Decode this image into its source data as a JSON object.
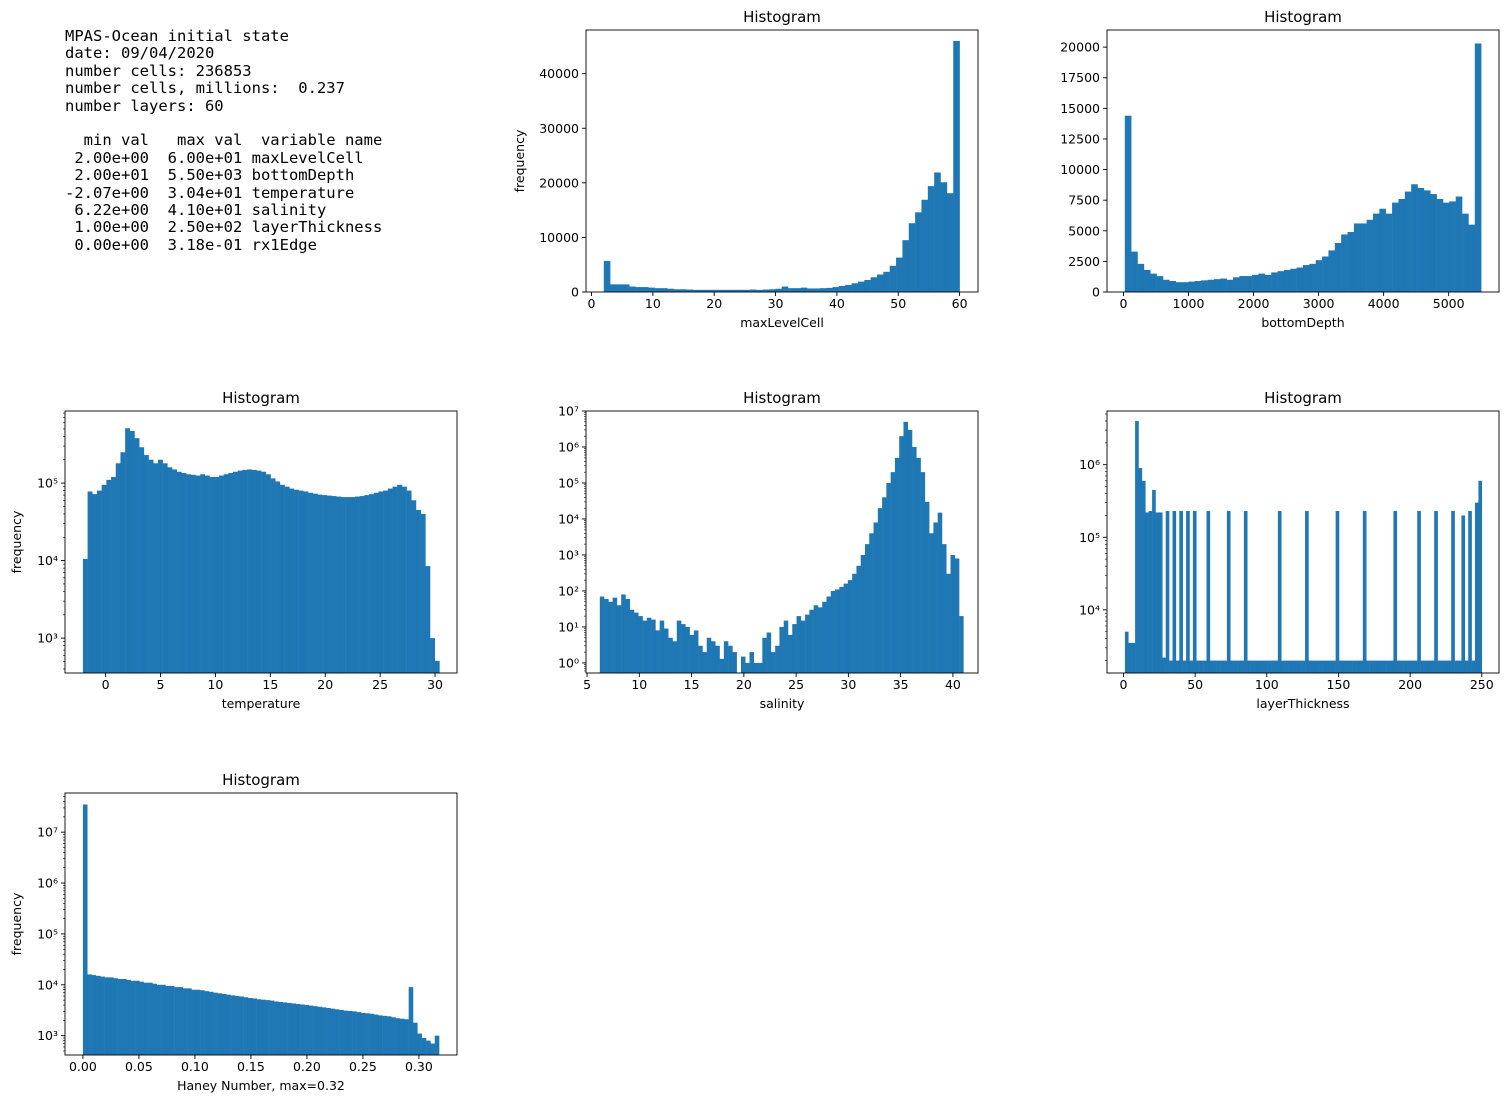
{
  "summary": {
    "header_lines": [
      "MPAS-Ocean initial state",
      "date: 09/04/2020",
      "number cells: 236853",
      "number cells, millions:  0.237",
      "number layers: 60"
    ],
    "table_header": "  min val   max val  variable name",
    "table_rows": [
      " 2.00e+00  6.00e+01 maxLevelCell",
      " 2.00e+01  5.50e+03 bottomDepth",
      "-2.07e+00  3.04e+01 temperature",
      " 6.22e+00  4.10e+01 salinity",
      " 1.00e+00  2.50e+02 layerThickness",
      " 0.00e+00  3.18e-01 rx1Edge"
    ]
  },
  "colors": {
    "bar": "#1f77b4",
    "axes": "#000000",
    "background": "#ffffff"
  },
  "chart_data": [
    {
      "id": "maxLevelCell",
      "type": "bar",
      "title": "Histogram",
      "xlabel": "maxLevelCell",
      "ylabel": "frequency",
      "yscale": "linear",
      "xlim": [
        -0.9,
        63.0
      ],
      "ylim": [
        0,
        48000
      ],
      "xticks": [
        0,
        10,
        20,
        30,
        40,
        50,
        60
      ],
      "xtick_labels": [
        "0",
        "10",
        "20",
        "30",
        "40",
        "50",
        "60"
      ],
      "yticks": [
        0,
        10000,
        20000,
        30000,
        40000
      ],
      "ytick_labels": [
        "0",
        "10000",
        "20000",
        "30000",
        "40000"
      ],
      "bin_start": 2,
      "bin_end": 60,
      "values": [
        5700,
        1400,
        1400,
        1400,
        1000,
        900,
        900,
        800,
        700,
        700,
        600,
        500,
        500,
        450,
        400,
        400,
        400,
        400,
        400,
        400,
        400,
        400,
        400,
        450,
        400,
        450,
        500,
        600,
        1000,
        700,
        700,
        800,
        650,
        650,
        700,
        750,
        900,
        1100,
        1300,
        1600,
        1900,
        2200,
        2700,
        3200,
        3700,
        4800,
        6300,
        9500,
        12600,
        14600,
        16900,
        19400,
        21900,
        20100,
        18100,
        46000
      ]
    },
    {
      "id": "bottomDepth",
      "type": "bar",
      "title": "Histogram",
      "xlabel": "bottomDepth",
      "ylabel": "",
      "yscale": "linear",
      "xlim": [
        -254,
        5774
      ],
      "ylim": [
        0,
        21400
      ],
      "xticks": [
        0,
        1000,
        2000,
        3000,
        4000,
        5000
      ],
      "xtick_labels": [
        "0",
        "1000",
        "2000",
        "3000",
        "4000",
        "5000"
      ],
      "yticks": [
        0,
        2500,
        5000,
        7500,
        10000,
        12500,
        15000,
        17500,
        20000
      ],
      "ytick_labels": [
        "0",
        "2500",
        "5000",
        "7500",
        "10000",
        "12500",
        "15000",
        "17500",
        "20000"
      ],
      "bin_start": 20,
      "bin_end": 5500,
      "values": [
        14400,
        3300,
        2300,
        1800,
        1500,
        1300,
        1000,
        900,
        800,
        800,
        850,
        900,
        950,
        1000,
        1050,
        1100,
        1000,
        1200,
        1300,
        1300,
        1400,
        1500,
        1400,
        1600,
        1700,
        1800,
        1900,
        2000,
        2200,
        2300,
        2600,
        2900,
        3400,
        4000,
        4700,
        4900,
        5600,
        5600,
        5900,
        6400,
        6800,
        6400,
        7300,
        7600,
        8200,
        8800,
        8500,
        8300,
        8000,
        7600,
        7300,
        7400,
        7800,
        6400,
        5500,
        20300
      ]
    },
    {
      "id": "temperature",
      "type": "bar",
      "title": "Histogram",
      "xlabel": "temperature",
      "ylabel": "frequency",
      "yscale": "log",
      "xlim": [
        -3.7,
        32.0
      ],
      "ylim_log10": [
        2.55,
        5.93
      ],
      "yticks": [
        1000,
        10000,
        100000
      ],
      "ytick_labels": [
        "10³",
        "10⁴",
        "10⁵"
      ],
      "xticks": [
        0,
        5,
        10,
        15,
        20,
        25,
        30
      ],
      "xtick_labels": [
        "0",
        "5",
        "10",
        "15",
        "20",
        "25",
        "30"
      ],
      "bin_start": -2.07,
      "bin_end": 30.4,
      "values": [
        10500,
        78000,
        72000,
        80000,
        95000,
        110000,
        120000,
        180000,
        250000,
        510000,
        470000,
        380000,
        290000,
        230000,
        200000,
        180000,
        200000,
        180000,
        160000,
        150000,
        140000,
        135000,
        130000,
        128000,
        125000,
        130000,
        125000,
        120000,
        120000,
        125000,
        130000,
        135000,
        140000,
        145000,
        148000,
        150000,
        148000,
        145000,
        140000,
        130000,
        115000,
        105000,
        95000,
        90000,
        85000,
        82000,
        80000,
        78000,
        75000,
        73000,
        71000,
        70000,
        69000,
        68000,
        67000,
        66000,
        66000,
        66000,
        67000,
        68000,
        70000,
        72000,
        75000,
        78000,
        80000,
        85000,
        90000,
        95000,
        90000,
        80000,
        60000,
        45000,
        40000,
        8500,
        1000,
        510
      ]
    },
    {
      "id": "salinity",
      "type": "bar",
      "title": "Histogram",
      "xlabel": "salinity",
      "ylabel": "",
      "yscale": "log",
      "xlim": [
        4.9,
        42.4
      ],
      "ylim_log10": [
        -0.28,
        7.0
      ],
      "yticks": [
        1,
        10,
        100,
        1000,
        10000,
        100000,
        1000000,
        10000000
      ],
      "ytick_labels": [
        "10⁰",
        "10¹",
        "10²",
        "10³",
        "10⁴",
        "10⁵",
        "10⁶",
        "10⁷"
      ],
      "xticks": [
        5,
        10,
        15,
        20,
        25,
        30,
        35,
        40
      ],
      "xtick_labels": [
        "5",
        "10",
        "15",
        "20",
        "25",
        "30",
        "35",
        "40"
      ],
      "bin_start": 6.22,
      "bin_end": 41.0,
      "values": [
        70,
        60,
        50,
        65,
        40,
        80,
        60,
        30,
        25,
        20,
        15,
        18,
        16,
        8,
        15,
        9,
        5,
        4,
        15,
        12,
        10,
        6,
        8,
        3,
        2,
        5,
        4,
        3,
        1.3,
        4,
        3,
        2,
        0,
        1.5,
        1,
        2,
        1,
        1,
        5,
        7,
        2,
        3,
        10,
        15,
        6,
        12,
        20,
        15,
        22,
        30,
        40,
        35,
        50,
        70,
        100,
        110,
        130,
        160,
        200,
        300,
        500,
        1000,
        2000,
        4000,
        8000,
        20000,
        40000,
        100000,
        200000,
        500000,
        2000000,
        5000000,
        3000000,
        1000000,
        500000,
        200000,
        30000,
        4000,
        8000,
        15000,
        2000,
        300,
        1000,
        800,
        20
      ]
    },
    {
      "id": "layerThickness",
      "type": "bar",
      "title": "Histogram",
      "xlabel": "layerThickness",
      "ylabel": "",
      "yscale": "log",
      "xlim": [
        -11.5,
        262.0
      ],
      "ylim_log10": [
        3.13,
        6.74
      ],
      "yticks": [
        10000,
        100000,
        1000000
      ],
      "ytick_labels": [
        "10⁴",
        "10⁵",
        "10⁶"
      ],
      "xticks": [
        0,
        50,
        100,
        150,
        200,
        250
      ],
      "xtick_labels": [
        "0",
        "50",
        "100",
        "150",
        "200",
        "250"
      ],
      "bin_start": 1,
      "bin_end": 250,
      "values": [
        5000,
        3500,
        3500,
        4000000,
        900000,
        600000,
        220000,
        230000,
        450000,
        220000,
        220000,
        2200,
        230000,
        2000,
        230000,
        2000,
        230000,
        2000,
        230000,
        2000,
        230000,
        2000,
        2000,
        2000,
        230000,
        2000,
        2000,
        2000,
        2000,
        2000,
        230000,
        2000,
        2000,
        2000,
        2000,
        230000,
        2000,
        2000,
        2000,
        2000,
        2000,
        2000,
        2000,
        2000,
        2000,
        230000,
        2000,
        2000,
        2000,
        2000,
        2000,
        2000,
        2000,
        230000,
        2000,
        2000,
        2000,
        2000,
        2000,
        2000,
        2000,
        2000,
        230000,
        2000,
        2000,
        2000,
        2000,
        2000,
        2000,
        2000,
        230000,
        2000,
        2000,
        2000,
        2000,
        2000,
        2000,
        2000,
        2000,
        230000,
        2000,
        2000,
        2000,
        2000,
        2000,
        2000,
        230000,
        2000,
        2000,
        2000,
        2000,
        230000,
        2000,
        2000,
        2000,
        2000,
        230000,
        2000,
        2000,
        200000,
        2000,
        230000,
        2000,
        300000,
        600000
      ]
    },
    {
      "id": "rx1Edge",
      "type": "bar",
      "title": "Histogram",
      "xlabel": "Haney Number, max=0.32",
      "ylabel": "frequency",
      "yscale": "log",
      "xlim": [
        -0.016,
        0.334
      ],
      "ylim_log10": [
        2.62,
        7.77
      ],
      "yticks": [
        1000,
        10000,
        100000,
        1000000,
        10000000
      ],
      "ytick_labels": [
        "10³",
        "10⁴",
        "10⁵",
        "10⁶",
        "10⁷"
      ],
      "xticks": [
        0,
        0.05,
        0.1,
        0.15,
        0.2,
        0.25,
        0.3
      ],
      "xtick_labels": [
        "0.00",
        "0.05",
        "0.10",
        "0.15",
        "0.20",
        "0.25",
        "0.30"
      ],
      "bin_start": 0,
      "bin_end": 0.318,
      "values": [
        35000000,
        16000,
        15500,
        15000,
        14500,
        14000,
        14000,
        13500,
        13000,
        13000,
        12500,
        12000,
        12000,
        11500,
        11000,
        11000,
        10500,
        10000,
        10000,
        9500,
        9500,
        9000,
        9000,
        8500,
        8500,
        8000,
        8000,
        7800,
        7500,
        7300,
        7000,
        6800,
        6600,
        6400,
        6200,
        6000,
        5900,
        5700,
        5500,
        5400,
        5200,
        5100,
        5000,
        4900,
        4700,
        4600,
        4500,
        4400,
        4300,
        4200,
        4100,
        4000,
        3900,
        3800,
        3700,
        3600,
        3500,
        3400,
        3300,
        3200,
        3100,
        3050,
        3000,
        2900,
        2800,
        2750,
        2700,
        2600,
        2500,
        2450,
        2400,
        2300,
        2200,
        2150,
        2100,
        9000,
        1800,
        1100,
        900,
        800,
        700,
        1000
      ]
    }
  ]
}
